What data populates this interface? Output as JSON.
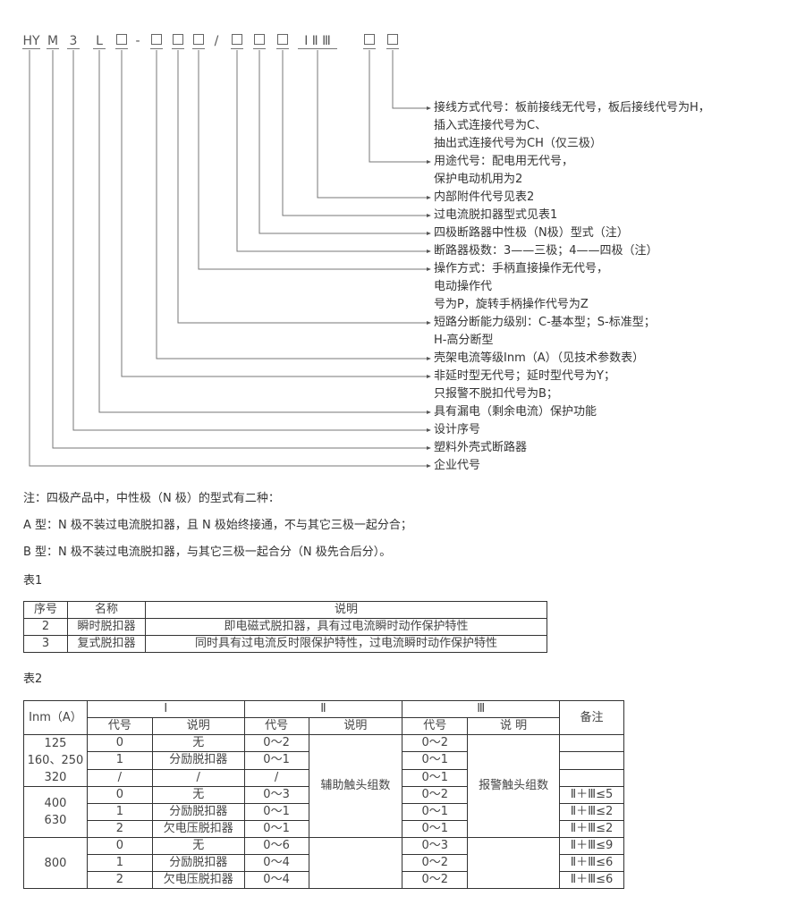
{
  "code_parts": [
    {
      "text": "HY",
      "box": false
    },
    {
      "text": "M",
      "box": false
    },
    {
      "text": "3",
      "box": false
    },
    {
      "text": "L",
      "box": false
    },
    {
      "text": "",
      "box": true
    },
    {
      "text": "-",
      "box": false
    },
    {
      "text": "",
      "box": true
    },
    {
      "text": "",
      "box": true
    },
    {
      "text": "",
      "box": true
    },
    {
      "text": "/",
      "box": false
    },
    {
      "text": "",
      "box": true
    },
    {
      "text": "",
      "box": true
    },
    {
      "text": "",
      "box": true
    },
    {
      "text": "Ⅰ Ⅱ Ⅲ",
      "box": false
    },
    {
      "text": "",
      "box": true
    },
    {
      "text": "",
      "box": true
    }
  ],
  "descriptions": [
    "接线方式代号：板前接线无代号，板后接线代号为H，",
    "插入式连接代号为C、",
    "抽出式连接代号为CH（仅三极）",
    "用途代号：配电用无代号，",
    "保护电动机用为2",
    "内部附件代号见表2",
    "过电流脱扣器型式见表1",
    "四极断路器中性极（N极）型式（注）",
    "断路器极数：3——三极；4——四极（注）",
    "操作方式：手柄直接操作无代号，",
    "电动操作代",
    "号为P，旋转手柄操作代号为Z",
    "短路分断能力级别：C-基本型；S-标准型；",
    "H-高分断型",
    "壳架电流等级Inm（A）（见技术参数表）",
    "非延时型无代号；延时型代号为Y；",
    "只报警不脱扣代号为B；",
    "具有漏电（剩余电流）保护功能",
    "设计序号",
    "塑料外壳式断路器",
    "企业代号"
  ],
  "notes": [
    "注：四极产品中，中性极（N 极）的型式有二种：",
    "A 型：N 极不装过电流脱扣器，且 N 极始终接通，不与其它三极一起分合；",
    "B 型：N 极不装过电流脱扣器，与其它三极一起合分（N 极先合后分）。"
  ],
  "table1": {
    "caption": "表1",
    "headers": [
      "序号",
      "名称",
      "说明"
    ],
    "rows": [
      [
        "2",
        "瞬时脱扣器",
        "即电磁式脱扣器，具有过电流瞬时动作保护特性"
      ],
      [
        "3",
        "复式脱扣器",
        "同时具有过电流反时限保护特性，过电流瞬时动作保护特性"
      ]
    ]
  },
  "table2": {
    "caption": "表2",
    "inm_header": "Inm（A）",
    "groups": [
      "Ⅰ",
      "Ⅱ",
      "Ⅲ"
    ],
    "remark_header": "备注",
    "sub_headers": [
      "代号",
      "说明",
      "代号",
      "说明",
      "代号",
      "说 明"
    ],
    "inm_groups": [
      "125\n160、250\n320",
      "400\n630",
      "800"
    ],
    "aux_desc": "辅助触头组数",
    "alarm_desc": "报警触头组数",
    "rows": [
      [
        "0",
        "无",
        "0～2",
        "0～2",
        ""
      ],
      [
        "1",
        "分励脱扣器",
        "0～1",
        "0～1",
        ""
      ],
      [
        "/",
        "/",
        "/",
        "0～1",
        ""
      ],
      [
        "0",
        "无",
        "0～3",
        "0～2",
        "Ⅱ＋Ⅲ≤5"
      ],
      [
        "1",
        "分励脱扣器",
        "0～1",
        "0～1",
        "Ⅱ＋Ⅲ≤2"
      ],
      [
        "2",
        "欠电压脱扣器",
        "0～1",
        "0～1",
        "Ⅱ＋Ⅲ≤2"
      ],
      [
        "0",
        "无",
        "0～6",
        "0～3",
        "Ⅱ＋Ⅲ≤9"
      ],
      [
        "1",
        "分励脱扣器",
        "0～4",
        "0～2",
        "Ⅱ＋Ⅲ≤6"
      ],
      [
        "2",
        "欠电压脱扣器",
        "0～4",
        "0～2",
        "Ⅱ＋Ⅲ≤6"
      ]
    ]
  }
}
